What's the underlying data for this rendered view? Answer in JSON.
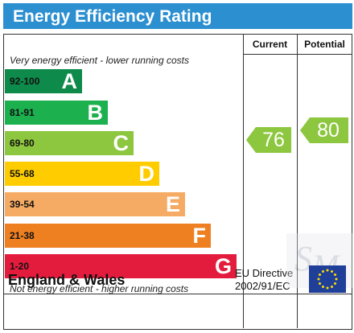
{
  "title": "Energy Efficiency Rating",
  "columns": {
    "current": "Current",
    "potential": "Potential"
  },
  "top_note": "Very energy efficient - lower running costs",
  "bottom_note": "Not energy efficient - higher running costs",
  "footer": {
    "region": "England & Wales",
    "directive_line1": "EU Directive",
    "directive_line2": "2002/91/EC"
  },
  "watermark_text": "Spencer Michael",
  "chart_data": {
    "type": "bar",
    "title": "Energy Efficiency Rating",
    "categories": [
      "A",
      "B",
      "C",
      "D",
      "E",
      "F",
      "G"
    ],
    "ranges": [
      "92-100",
      "81-91",
      "69-80",
      "55-68",
      "39-54",
      "21-38",
      "1-20"
    ],
    "colors": [
      "#0e8a4a",
      "#1cb04f",
      "#8dc63f",
      "#ffcc00",
      "#f5ab63",
      "#ef8022",
      "#e31c3d"
    ],
    "current": {
      "label": "Current",
      "value": 76,
      "band": "C",
      "color": "#8dc63f"
    },
    "potential": {
      "label": "Potential",
      "value": 80,
      "band": "C",
      "color": "#8dc63f"
    }
  }
}
